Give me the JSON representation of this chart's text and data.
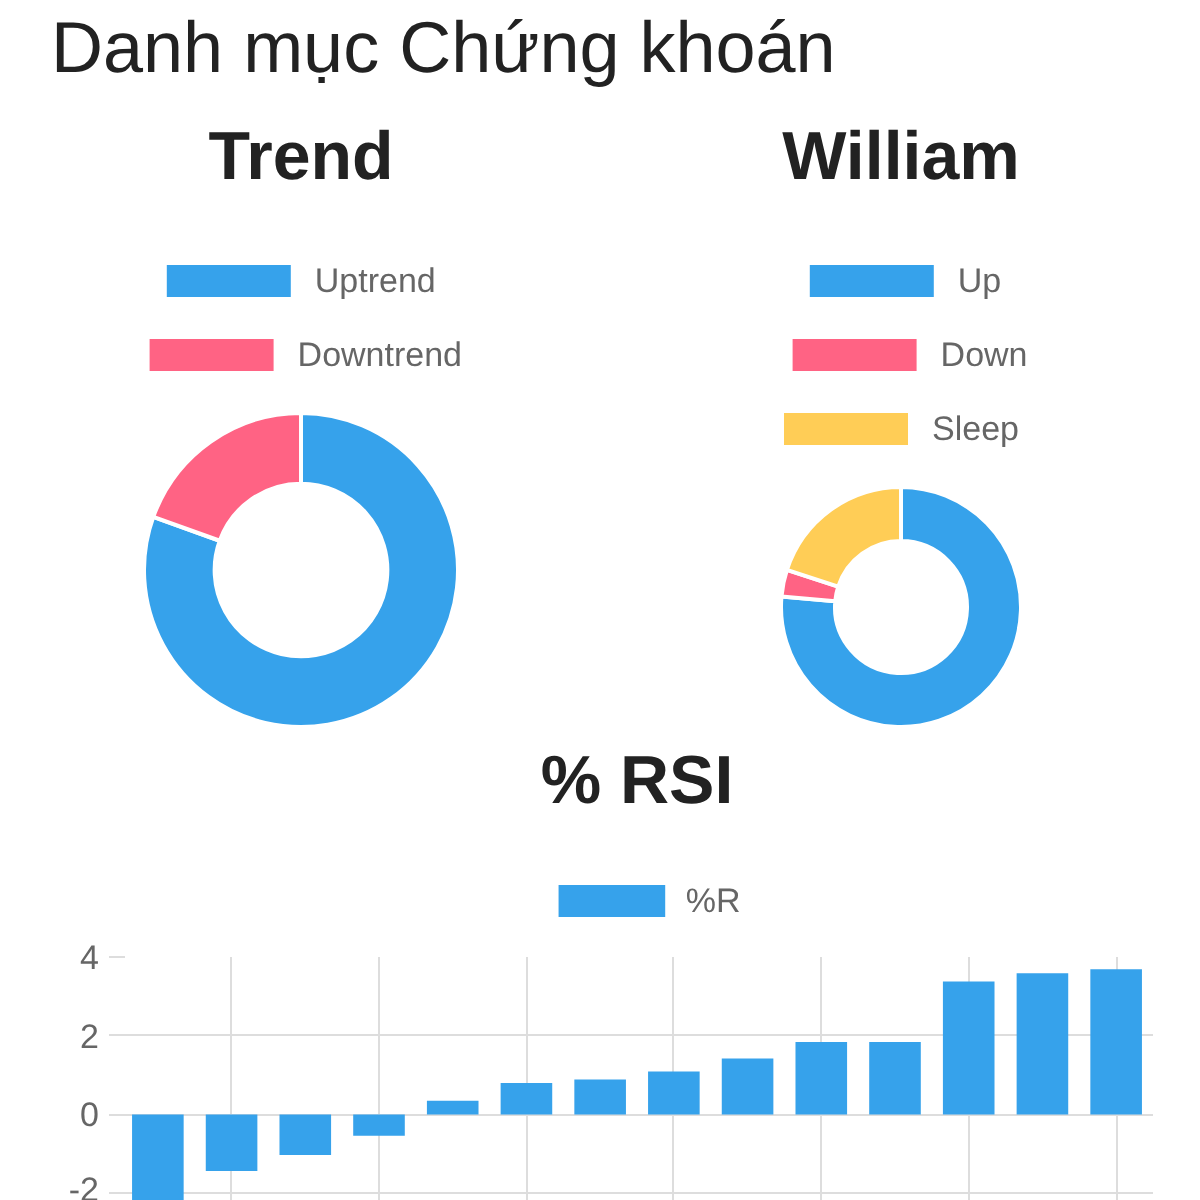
{
  "chart_data": [
    {
      "type": "donut",
      "annotations": [
        "Danh mục Chứng khoán"
      ],
      "title": "Trend",
      "categories": [
        "Uptrend",
        "Downtrend"
      ],
      "values": [
        80.5,
        19.5
      ],
      "colors": [
        "#36a2eb",
        "#ff6384"
      ],
      "legend": "top"
    },
    {
      "type": "donut",
      "title": "William",
      "categories": [
        "Up",
        "Down",
        "Sleep"
      ],
      "values": [
        76.4,
        3.6,
        20
      ],
      "colors": [
        "#36a2eb",
        "#ff6384",
        "#ffcd56"
      ],
      "legend": "top"
    },
    {
      "type": "bar",
      "title": "% RSI",
      "categories": [
        null,
        null,
        null,
        null,
        null,
        null,
        null,
        null,
        null,
        null,
        null,
        null,
        null,
        null
      ],
      "series": [
        {
          "name": "%R",
          "color": "#36a2eb",
          "values": [
            -2.2,
            -1.44,
            -1.03,
            -0.54,
            0.35,
            0.8,
            0.89,
            1.09,
            1.42,
            1.84,
            1.84,
            3.38,
            3.59,
            3.69
          ]
        }
      ],
      "ylim": [
        -2.2,
        4
      ],
      "yticks": [
        -2,
        0,
        2,
        4
      ],
      "grid": true,
      "legend": "top"
    }
  ]
}
